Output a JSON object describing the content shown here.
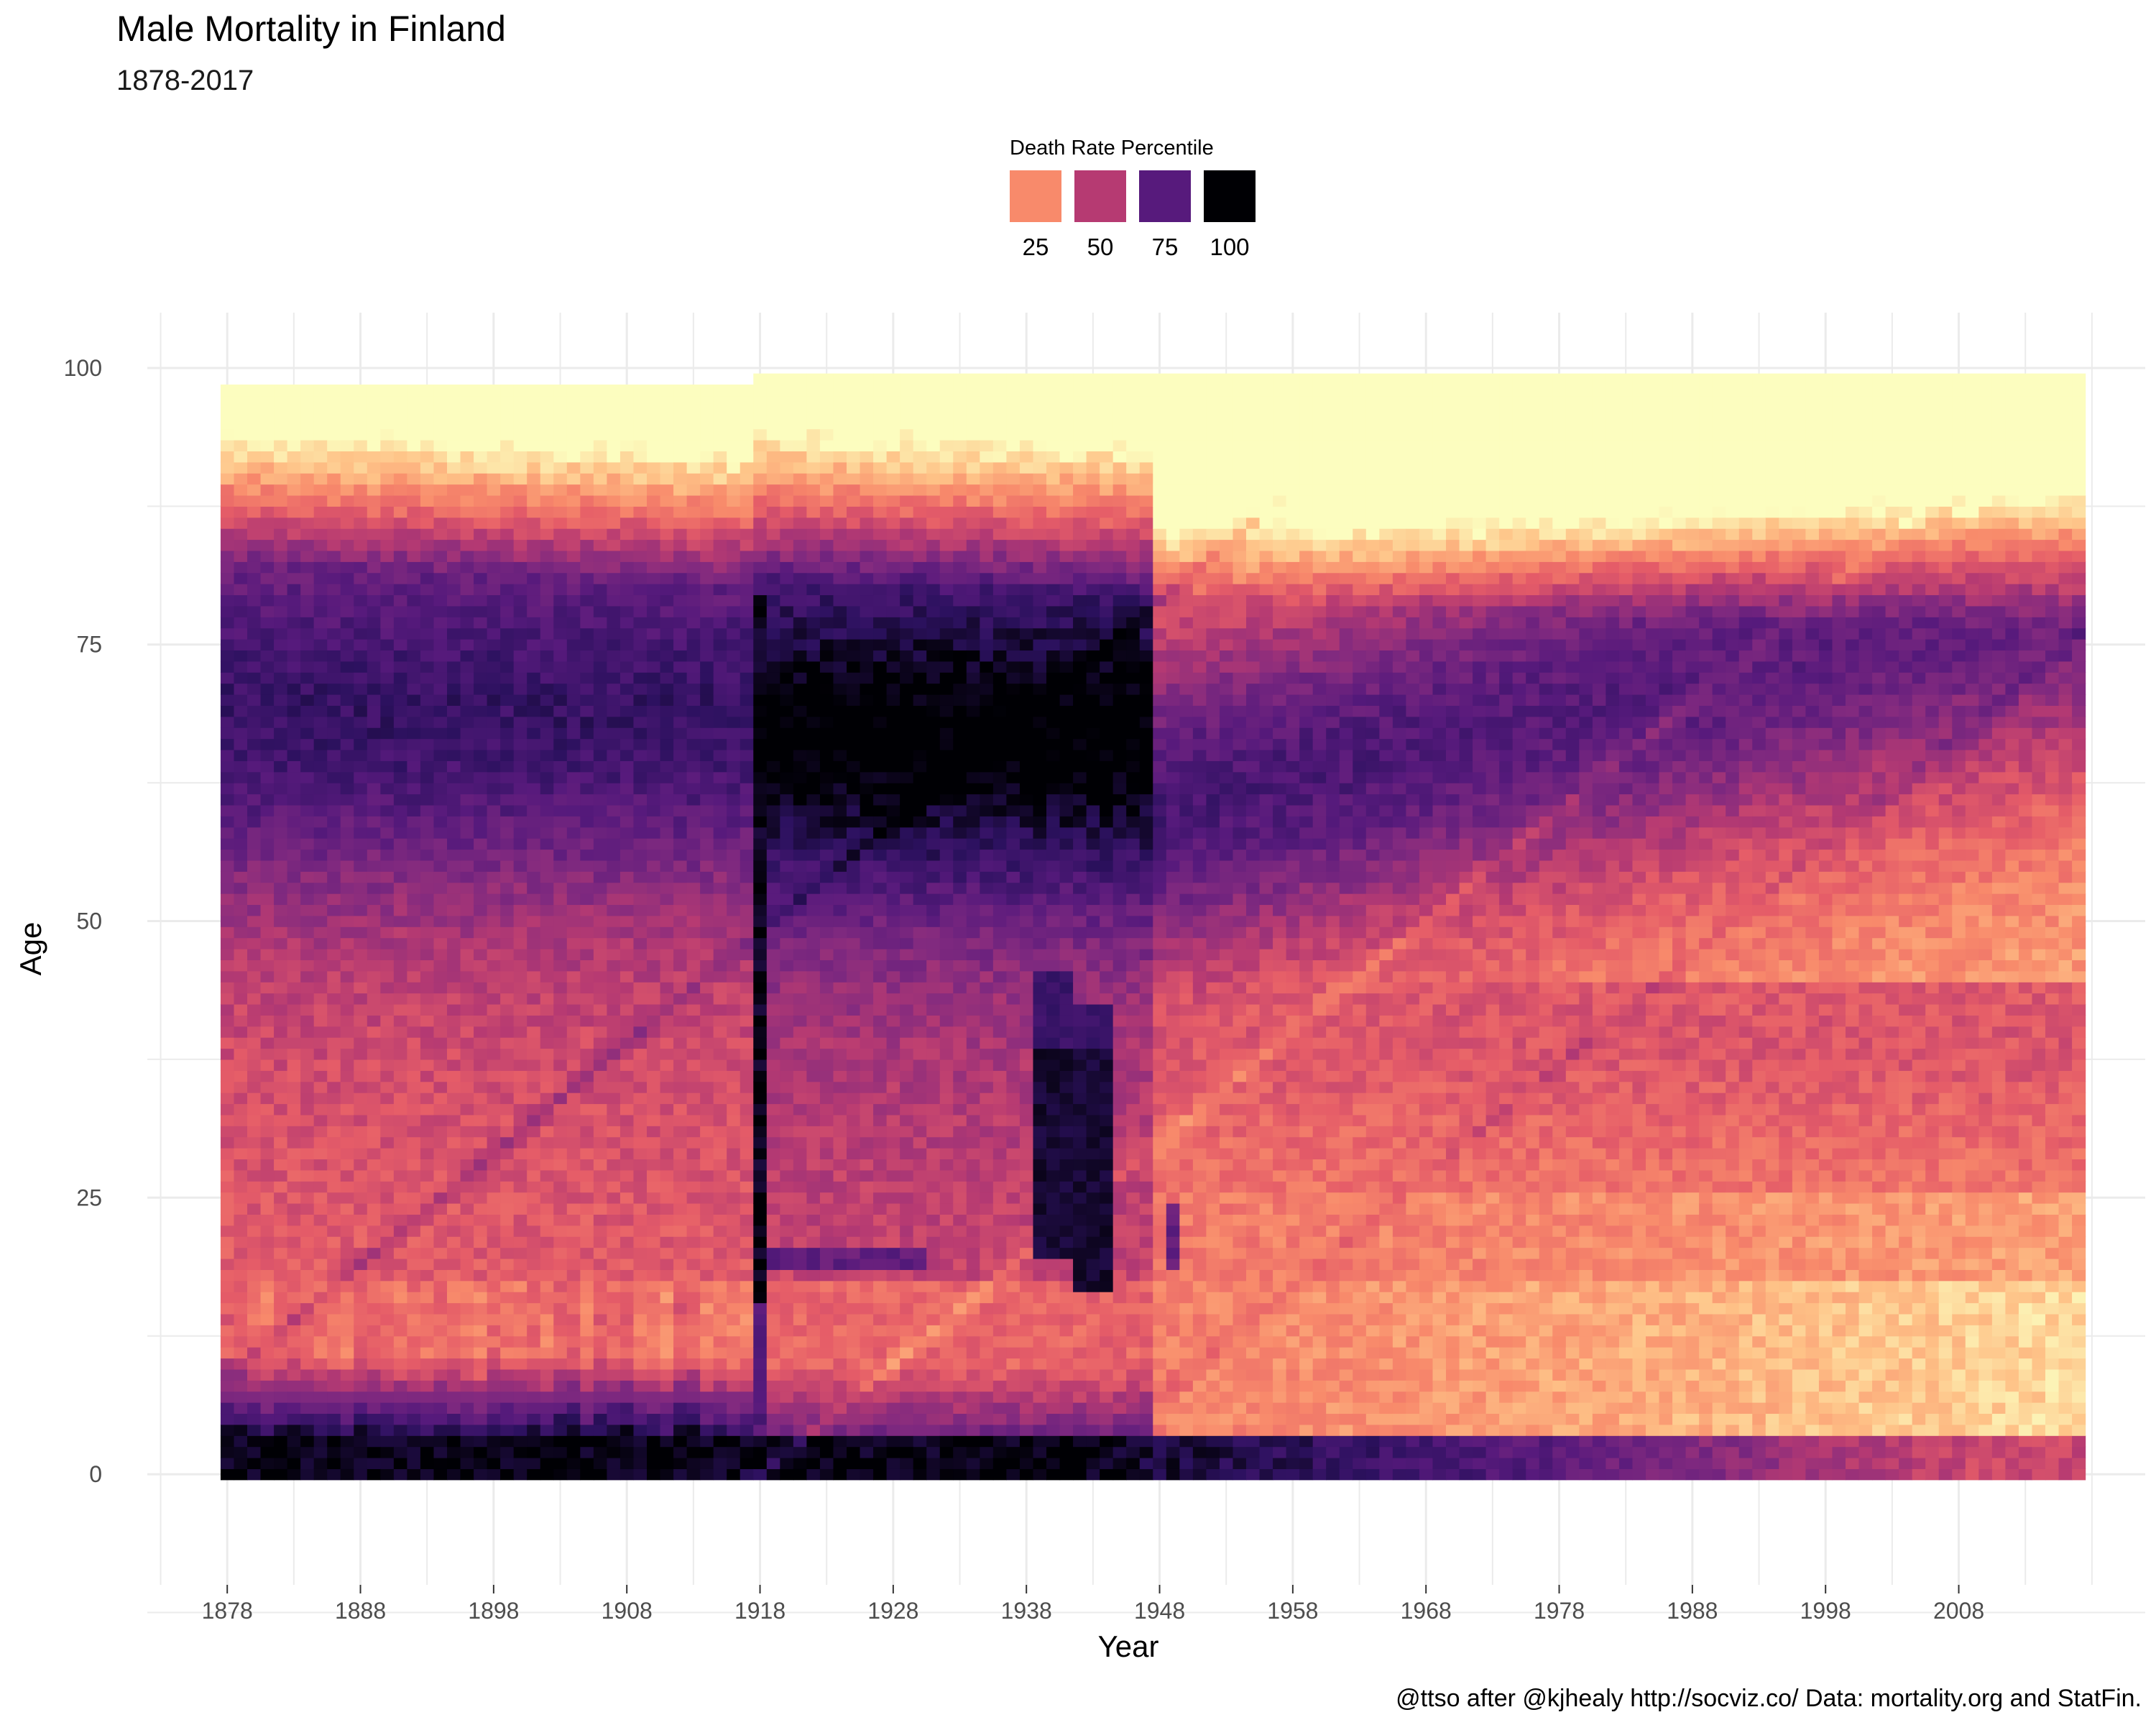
{
  "chart_data": {
    "type": "heatmap",
    "title": "Male Mortality in Finland",
    "subtitle": "1878-2017",
    "xlabel": "Year",
    "ylabel": "Age",
    "x_range": [
      1878,
      2017
    ],
    "y_range": [
      0,
      100
    ],
    "xlim": [
      1872,
      2022
    ],
    "ylim": [
      -10,
      105
    ],
    "x_ticks": [
      1878,
      1888,
      1898,
      1908,
      1918,
      1928,
      1938,
      1948,
      1958,
      1968,
      1978,
      1988,
      1998,
      2008
    ],
    "y_ticks": [
      0,
      25,
      50,
      75,
      100
    ],
    "grid": true,
    "legend": {
      "title": "Death Rate Percentile",
      "position": "top-center",
      "entries": [
        {
          "label": "25",
          "color": "#f88a6b"
        },
        {
          "label": "50",
          "color": "#b63a72"
        },
        {
          "label": "75",
          "color": "#571a7c"
        },
        {
          "label": "100",
          "color": "#000004"
        }
      ]
    },
    "colorscale": [
      "#fcfdbf",
      "#fec287",
      "#f88a6b",
      "#e55c68",
      "#b63a72",
      "#822a7f",
      "#571a7c",
      "#2c115f",
      "#000004"
    ],
    "notable_features": [
      {
        "year": 1918,
        "ages": [
          16,
          79
        ],
        "percentile": 100
      },
      {
        "year_range": [
          1939,
          1944
        ],
        "ages": [
          17,
          45
        ],
        "percentile": 100
      },
      {
        "year_range": [
          1920,
          1930
        ],
        "ages": [
          19,
          21
        ],
        "percentile": 80
      }
    ],
    "caption": "@ttso after @kjhealy http://socviz.co/ Data: mortality.org and StatFin."
  }
}
